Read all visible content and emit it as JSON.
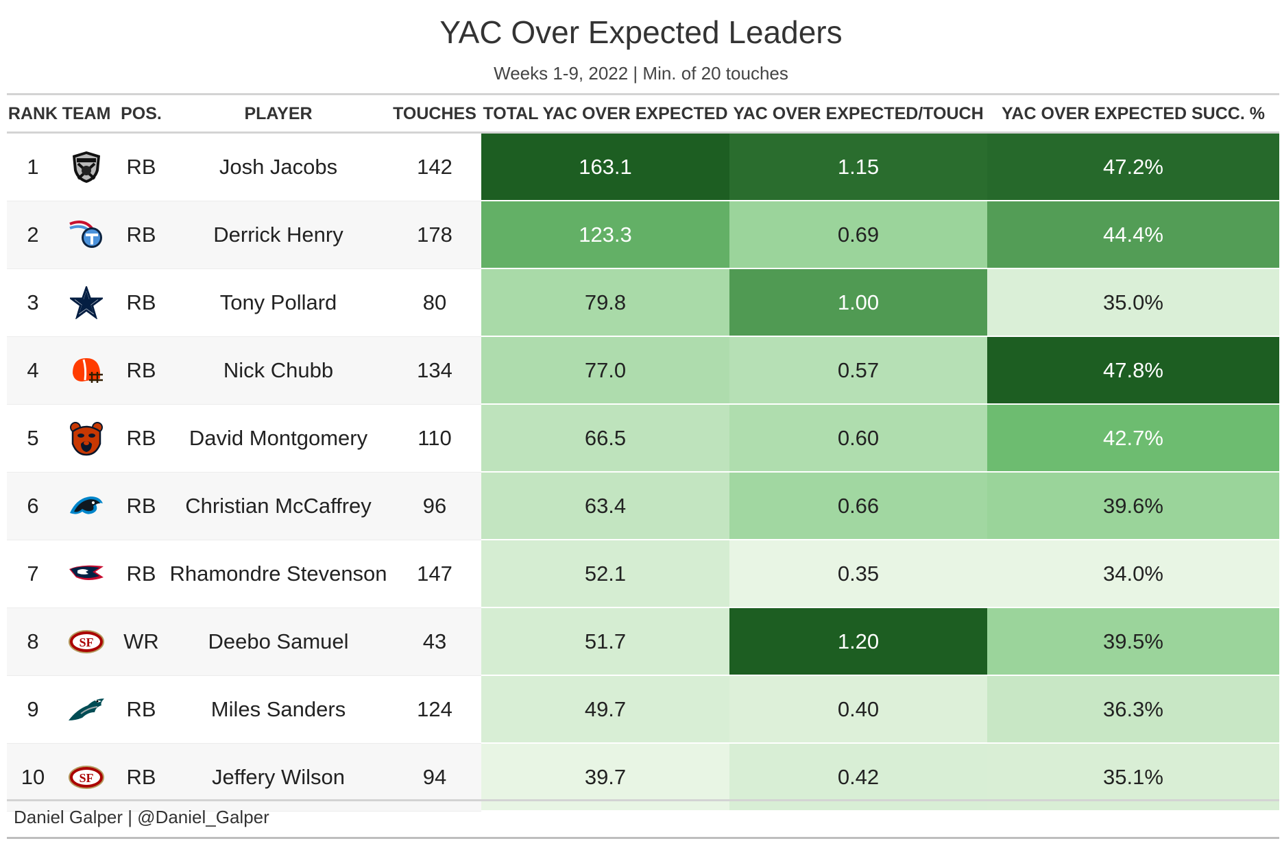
{
  "title": "YAC Over Expected Leaders",
  "subtitle": "Weeks 1-9, 2022 | Min. of 20 touches",
  "credit": "Daniel Galper | @Daniel_Galper",
  "columns": {
    "rank": "RANK",
    "team": "TEAM",
    "pos": "POS.",
    "player": "PLAYER",
    "touches": "TOUCHES",
    "total": "TOTAL YAC OVER EXPECTED",
    "per_touch": "YAC OVER EXPECTED/TOUCH",
    "succ": "YAC OVER EXPECTED SUCC. %"
  },
  "colors": {
    "heat_low": "#e8f5e4",
    "heat_high": "#1d5e22",
    "header_rule": "#d3d3d3"
  },
  "chart_data": {
    "type": "table",
    "rows": [
      {
        "rank": "1",
        "team": "raiders-logo",
        "pos": "RB",
        "player": "Josh Jacobs",
        "touches": "142",
        "total": "163.1",
        "per_touch": "1.15",
        "succ": "47.2%"
      },
      {
        "rank": "2",
        "team": "titans-logo",
        "pos": "RB",
        "player": "Derrick Henry",
        "touches": "178",
        "total": "123.3",
        "per_touch": "0.69",
        "succ": "44.4%"
      },
      {
        "rank": "3",
        "team": "cowboys-logo",
        "pos": "RB",
        "player": "Tony Pollard",
        "touches": "80",
        "total": "79.8",
        "per_touch": "1.00",
        "succ": "35.0%"
      },
      {
        "rank": "4",
        "team": "browns-logo",
        "pos": "RB",
        "player": "Nick Chubb",
        "touches": "134",
        "total": "77.0",
        "per_touch": "0.57",
        "succ": "47.8%"
      },
      {
        "rank": "5",
        "team": "bears-logo",
        "pos": "RB",
        "player": "David Montgomery",
        "touches": "110",
        "total": "66.5",
        "per_touch": "0.60",
        "succ": "42.7%"
      },
      {
        "rank": "6",
        "team": "panthers-logo",
        "pos": "RB",
        "player": "Christian McCaffrey",
        "touches": "96",
        "total": "63.4",
        "per_touch": "0.66",
        "succ": "39.6%"
      },
      {
        "rank": "7",
        "team": "patriots-logo",
        "pos": "RB",
        "player": "Rhamondre Stevenson",
        "touches": "147",
        "total": "52.1",
        "per_touch": "0.35",
        "succ": "34.0%"
      },
      {
        "rank": "8",
        "team": "49ers-logo",
        "pos": "WR",
        "player": "Deebo Samuel",
        "touches": "43",
        "total": "51.7",
        "per_touch": "1.20",
        "succ": "39.5%"
      },
      {
        "rank": "9",
        "team": "eagles-logo",
        "pos": "RB",
        "player": "Miles Sanders",
        "touches": "124",
        "total": "49.7",
        "per_touch": "0.40",
        "succ": "36.3%"
      },
      {
        "rank": "10",
        "team": "49ers-logo",
        "pos": "RB",
        "player": "Jeffery Wilson",
        "touches": "94",
        "total": "39.7",
        "per_touch": "0.42",
        "succ": "35.1%"
      }
    ]
  }
}
